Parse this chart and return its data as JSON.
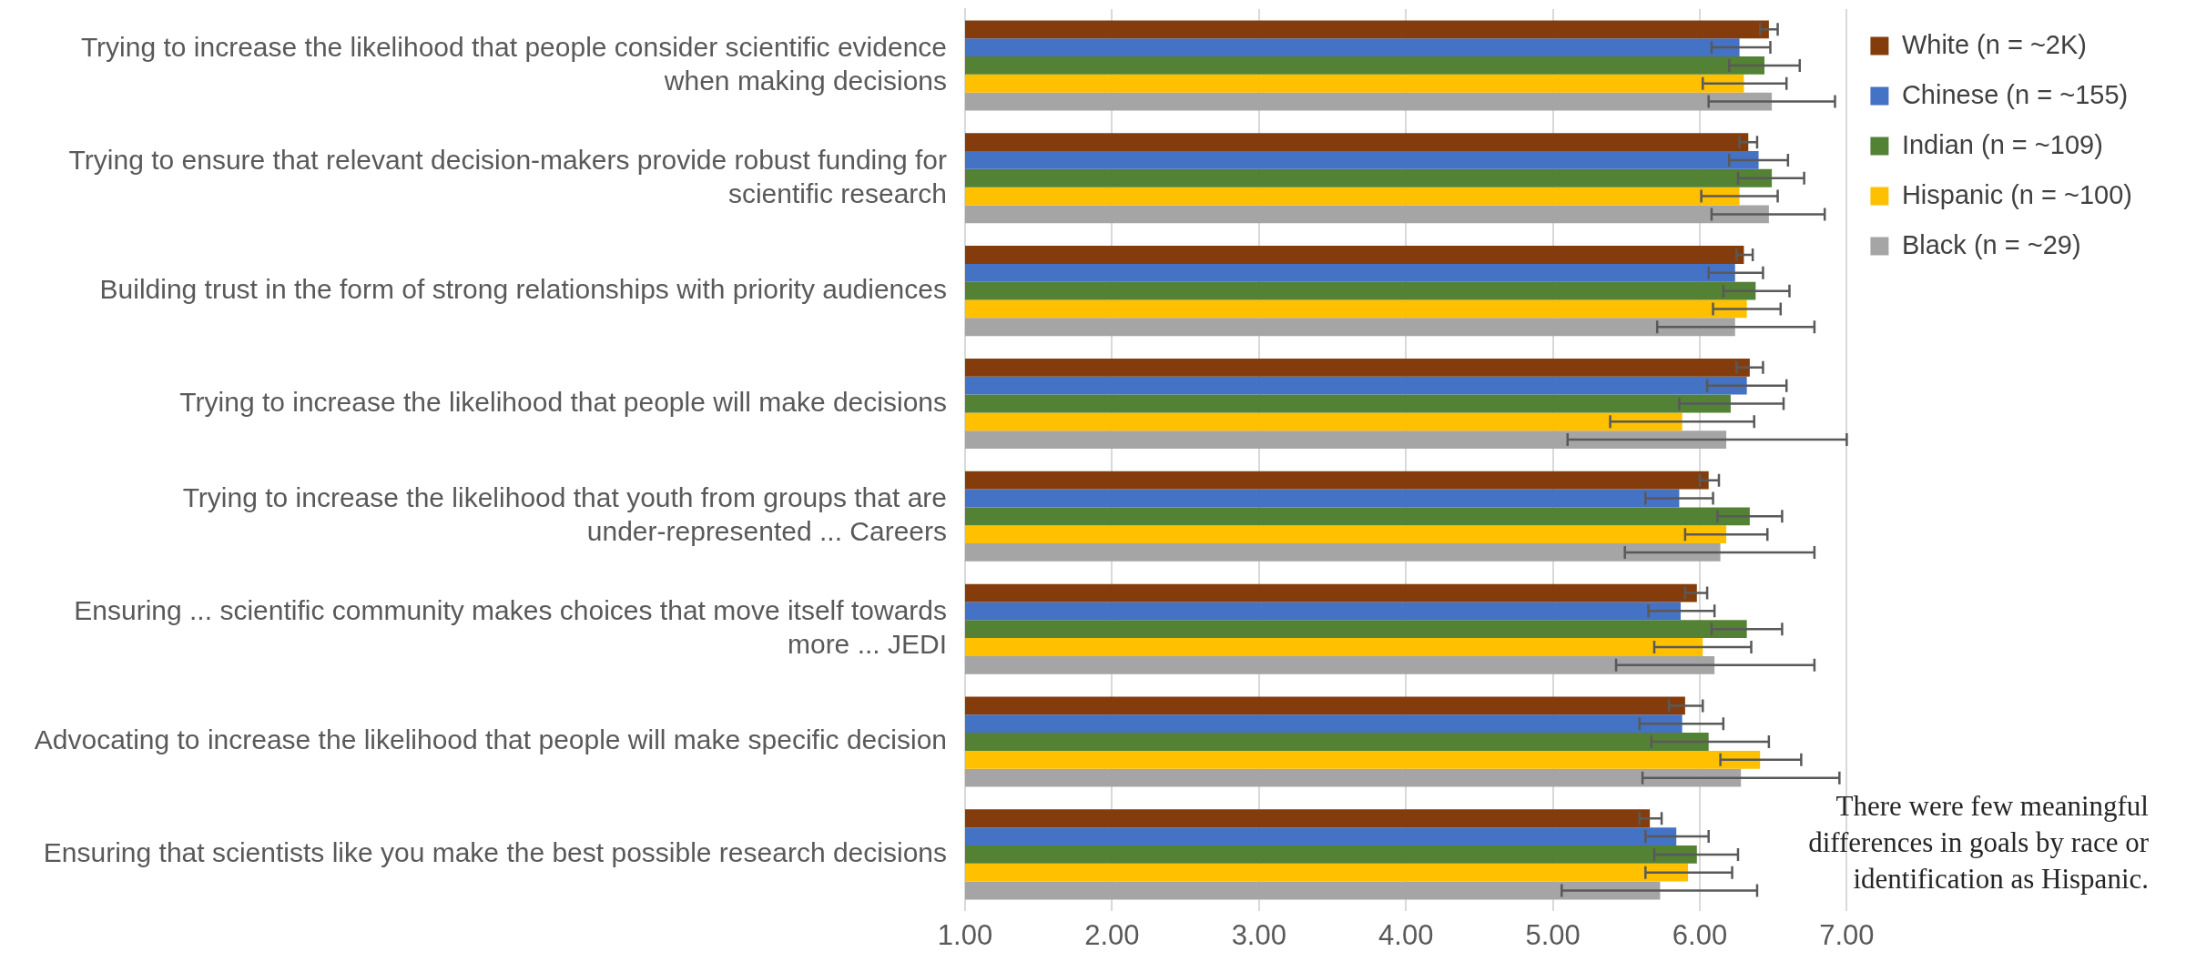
{
  "chart_data": {
    "type": "bar",
    "orientation": "horizontal",
    "categories": [
      "Trying to increase the likelihood that people consider scientific evidence when making decisions",
      "Trying to ensure that relevant decision-makers provide robust funding for scientific research",
      "Building trust in the form of strong relationships with priority audiences",
      "Trying to increase the likelihood that people will make decisions",
      "Trying to increase the likelihood that youth from groups that are under-represented ... Careers",
      "Ensuring ... scientific community makes choices that move itself towards more ... JEDI",
      "Advocating to increase the likelihood that people will make specific decision",
      "Ensuring that scientists like you make the best possible research decisions"
    ],
    "series": [
      {
        "name": "White (n = ~2K)",
        "color": "#843c0c",
        "values": [
          6.47,
          6.33,
          6.3,
          6.34,
          6.06,
          5.98,
          5.9,
          5.66
        ],
        "errors": [
          [
            6.41,
            6.53
          ],
          [
            6.27,
            6.39
          ],
          [
            6.25,
            6.36
          ],
          [
            6.25,
            6.43
          ],
          [
            6.0,
            6.13
          ],
          [
            5.9,
            6.05
          ],
          [
            5.79,
            6.02
          ],
          [
            5.59,
            5.74
          ]
        ]
      },
      {
        "name": "Chinese (n = ~155)",
        "color": "#4472c4",
        "values": [
          6.27,
          6.4,
          6.24,
          6.32,
          5.86,
          5.87,
          5.88,
          5.84
        ],
        "errors": [
          [
            6.08,
            6.48
          ],
          [
            6.2,
            6.6
          ],
          [
            6.06,
            6.43
          ],
          [
            6.05,
            6.59
          ],
          [
            5.63,
            6.09
          ],
          [
            5.65,
            6.1
          ],
          [
            5.59,
            6.16
          ],
          [
            5.63,
            6.06
          ]
        ]
      },
      {
        "name": "Indian (n = ~109)",
        "color": "#548235",
        "values": [
          6.44,
          6.49,
          6.38,
          6.21,
          6.34,
          6.32,
          6.06,
          5.98
        ],
        "errors": [
          [
            6.2,
            6.68
          ],
          [
            6.26,
            6.71
          ],
          [
            6.16,
            6.61
          ],
          [
            5.86,
            6.57
          ],
          [
            6.12,
            6.56
          ],
          [
            6.08,
            6.56
          ],
          [
            5.67,
            6.47
          ],
          [
            5.69,
            6.26
          ]
        ]
      },
      {
        "name": "Hispanic (n = ~100)",
        "color": "#ffc000",
        "values": [
          6.3,
          6.27,
          6.32,
          5.88,
          6.18,
          6.02,
          6.41,
          5.92
        ],
        "errors": [
          [
            6.02,
            6.59
          ],
          [
            6.01,
            6.53
          ],
          [
            6.09,
            6.55
          ],
          [
            5.39,
            6.37
          ],
          [
            5.9,
            6.46
          ],
          [
            5.69,
            6.35
          ],
          [
            6.14,
            6.69
          ],
          [
            5.63,
            6.22
          ]
        ]
      },
      {
        "name": "Black (n = ~29)",
        "color": "#a5a5a5",
        "values": [
          6.49,
          6.47,
          6.24,
          6.18,
          6.14,
          6.1,
          6.28,
          5.73
        ],
        "errors": [
          [
            6.06,
            6.92
          ],
          [
            6.08,
            6.85
          ],
          [
            5.71,
            6.78
          ],
          [
            5.1,
            7.0
          ],
          [
            5.49,
            6.78
          ],
          [
            5.43,
            6.78
          ],
          [
            5.61,
            6.95
          ],
          [
            5.06,
            6.39
          ]
        ]
      }
    ],
    "xlim": [
      1,
      7
    ],
    "xticks": [
      {
        "value": 1,
        "label": "1.00"
      },
      {
        "value": 2,
        "label": "2.00"
      },
      {
        "value": 3,
        "label": "3.00"
      },
      {
        "value": 4,
        "label": "4.00"
      },
      {
        "value": 5,
        "label": "5.00"
      },
      {
        "value": 6,
        "label": "6.00"
      },
      {
        "value": 7,
        "label": "7.00"
      }
    ],
    "grid": "x",
    "legend": "right",
    "annotations": [
      "There were few meaningful differences in goals by race or identification as Hispanic."
    ]
  }
}
